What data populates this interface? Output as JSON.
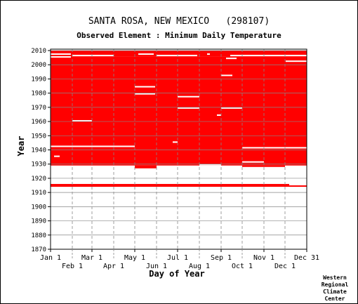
{
  "chart_data": {
    "type": "heatmap",
    "title": "SANTA ROSA, NEW MEXICO   (298107)",
    "subtitle": "Observed Element : Minimum Daily Temperature",
    "xlabel": "Day of Year",
    "ylabel": "Year",
    "xlim": [
      1,
      366
    ],
    "ylim": [
      1870,
      2011
    ],
    "x_ticks_top_row": [
      {
        "label": "Jan 1",
        "day": 1
      },
      {
        "label": "Mar 1",
        "day": 60
      },
      {
        "label": "May 1",
        "day": 121
      },
      {
        "label": "Jul 1",
        "day": 182
      },
      {
        "label": "Sep 1",
        "day": 244
      },
      {
        "label": "Nov 1",
        "day": 305
      },
      {
        "label": "Dec 31",
        "day": 366
      }
    ],
    "x_ticks_bottom_row": [
      {
        "label": "Feb 1",
        "day": 32
      },
      {
        "label": "Apr 1",
        "day": 91
      },
      {
        "label": "Jun 1",
        "day": 152
      },
      {
        "label": "Aug 1",
        "day": 213
      },
      {
        "label": "Oct 1",
        "day": 274
      },
      {
        "label": "Dec 1",
        "day": 335
      }
    ],
    "y_ticks": [
      1870,
      1880,
      1890,
      1900,
      1910,
      1920,
      1930,
      1940,
      1950,
      1960,
      1970,
      1980,
      1990,
      2000,
      2010
    ],
    "data_color": "#ff0000",
    "observed_blocks": [
      {
        "year_from": 1914,
        "year_to": 1916,
        "day_from": 1,
        "day_to": 341
      },
      {
        "year_from": 1914,
        "year_to": 1915,
        "day_from": 341,
        "day_to": 366
      },
      {
        "year_from": 1929,
        "year_to": 2006,
        "day_from": 1,
        "day_to": 366
      },
      {
        "year_from": 1927,
        "year_to": 1929,
        "day_from": 121,
        "day_to": 152
      },
      {
        "year_from": 1928,
        "year_to": 1929,
        "day_from": 274,
        "day_to": 335
      },
      {
        "year_from": 2006,
        "year_to": 2010,
        "day_from": 1,
        "day_to": 366
      }
    ],
    "missing_blocks": [
      {
        "year_from": 2007,
        "year_to": 2008,
        "day_from": 1,
        "day_to": 30
      },
      {
        "year_from": 2006,
        "year_to": 2007,
        "day_from": 32,
        "day_to": 91
      },
      {
        "year_from": 2005,
        "year_to": 2006,
        "day_from": 1,
        "day_to": 30
      },
      {
        "year_from": 2007,
        "year_to": 2008,
        "day_from": 126,
        "day_to": 148
      },
      {
        "year_from": 2006,
        "year_to": 2007,
        "day_from": 152,
        "day_to": 210
      },
      {
        "year_from": 2007,
        "year_to": 2008,
        "day_from": 224,
        "day_to": 228
      },
      {
        "year_from": 2004,
        "year_to": 2005,
        "day_from": 251,
        "day_to": 266
      },
      {
        "year_from": 2006,
        "year_to": 2007,
        "day_from": 257,
        "day_to": 366
      },
      {
        "year_from": 2002,
        "year_to": 2003,
        "day_from": 336,
        "day_to": 366
      },
      {
        "year_from": 1984,
        "year_to": 1985,
        "day_from": 121,
        "day_to": 150
      },
      {
        "year_from": 1979,
        "year_to": 1980,
        "day_from": 121,
        "day_to": 150
      },
      {
        "year_from": 1977,
        "year_to": 1978,
        "day_from": 182,
        "day_to": 213
      },
      {
        "year_from": 1969,
        "year_to": 1970,
        "day_from": 182,
        "day_to": 213
      },
      {
        "year_from": 1969,
        "year_to": 1970,
        "day_from": 244,
        "day_to": 274
      },
      {
        "year_from": 1992,
        "year_to": 1993,
        "day_from": 244,
        "day_to": 260
      },
      {
        "year_from": 1960,
        "year_to": 1961,
        "day_from": 32,
        "day_to": 60
      },
      {
        "year_from": 1935,
        "year_to": 1936,
        "day_from": 6,
        "day_to": 14
      },
      {
        "year_from": 1942,
        "year_to": 1943,
        "day_from": 1,
        "day_to": 121
      },
      {
        "year_from": 1941,
        "year_to": 1942,
        "day_from": 274,
        "day_to": 366
      },
      {
        "year_from": 1931,
        "year_to": 1932,
        "day_from": 274,
        "day_to": 305
      },
      {
        "year_from": 1945,
        "year_to": 1946,
        "day_from": 175,
        "day_to": 182
      },
      {
        "year_from": 1929,
        "year_to": 1930,
        "day_from": 213,
        "day_to": 244
      },
      {
        "year_from": 1964,
        "year_to": 1965,
        "day_from": 238,
        "day_to": 244
      }
    ],
    "grid": true
  },
  "credit": [
    "Western",
    "Regional",
    "Climate",
    "Center"
  ],
  "colors": {
    "grid": "#888888",
    "axis": "#000000",
    "background": "#ffffff"
  }
}
